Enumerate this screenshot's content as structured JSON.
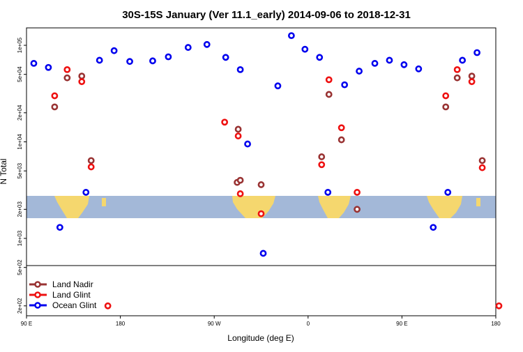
{
  "chart_data": {
    "type": "scatter",
    "title": "30S-15S January (Ver 11.1_early)   2014-09-06 to 2018-12-31",
    "xlabel": "Longitude (deg E)",
    "ylabel": "N Total",
    "x_ticks": [
      {
        "value": 90,
        "label": "90 E"
      },
      {
        "value": 180,
        "label": "180"
      },
      {
        "value": 270,
        "label": "90 W"
      },
      {
        "value": 360,
        "label": "0"
      },
      {
        "value": 450,
        "label": "90 E"
      },
      {
        "value": 540,
        "label": "180"
      }
    ],
    "xlim": [
      90,
      540
    ],
    "y_scale": "log",
    "y_ticks": [
      {
        "value": 200,
        "label": "2e+02"
      },
      {
        "value": 500,
        "label": "5e+02"
      },
      {
        "value": 1000,
        "label": "1e+03"
      },
      {
        "value": 2000,
        "label": "2e+03"
      },
      {
        "value": 5000,
        "label": "5e+03"
      },
      {
        "value": 10000,
        "label": "1e+04"
      },
      {
        "value": 20000,
        "label": "2e+04"
      },
      {
        "value": 50000,
        "label": "5e+04"
      },
      {
        "value": 100000,
        "label": "1e+05"
      }
    ],
    "ylim": [
      150,
      150000
    ],
    "series": [
      {
        "name": "Land Nadir",
        "color": "#993333",
        "points": [
          [
            117,
            23000
          ],
          [
            129,
            46000
          ],
          [
            143,
            48000
          ],
          [
            152,
            6400
          ],
          [
            292,
            3800
          ],
          [
            293,
            13500
          ],
          [
            295,
            4000
          ],
          [
            315,
            3600
          ],
          [
            373,
            7000
          ],
          [
            380,
            31000
          ],
          [
            392,
            10500
          ],
          [
            407,
            2000
          ],
          [
            492,
            23000
          ],
          [
            503,
            46000
          ],
          [
            517,
            48000
          ],
          [
            527,
            6400
          ]
        ]
      },
      {
        "name": "Land Glint",
        "color": "#ee1111",
        "points": [
          [
            117,
            30000
          ],
          [
            129,
            56000
          ],
          [
            143,
            42000
          ],
          [
            152,
            5500
          ],
          [
            168,
            200
          ],
          [
            280,
            16000
          ],
          [
            293,
            11500
          ],
          [
            295,
            2900
          ],
          [
            315,
            1800
          ],
          [
            373,
            5800
          ],
          [
            380,
            44000
          ],
          [
            392,
            14000
          ],
          [
            407,
            3000
          ],
          [
            492,
            30000
          ],
          [
            503,
            56000
          ],
          [
            517,
            42000
          ],
          [
            527,
            5400
          ],
          [
            543,
            200
          ]
        ]
      },
      {
        "name": "Ocean Glint",
        "color": "#0000ee",
        "points": [
          [
            97,
            65000
          ],
          [
            111,
            59000
          ],
          [
            122,
            1300
          ],
          [
            147,
            3000
          ],
          [
            160,
            70000
          ],
          [
            174,
            88000
          ],
          [
            189,
            68000
          ],
          [
            211,
            69000
          ],
          [
            226,
            76000
          ],
          [
            245,
            95000
          ],
          [
            263,
            102000
          ],
          [
            281,
            75000
          ],
          [
            295,
            56000
          ],
          [
            302,
            9500
          ],
          [
            317,
            700
          ],
          [
            331,
            38000
          ],
          [
            344,
            126000
          ],
          [
            357,
            91000
          ],
          [
            371,
            75000
          ],
          [
            379,
            3000
          ],
          [
            395,
            39000
          ],
          [
            409,
            54000
          ],
          [
            424,
            65000
          ],
          [
            438,
            70000
          ],
          [
            452,
            63000
          ],
          [
            466,
            57000
          ],
          [
            480,
            1300
          ],
          [
            494,
            3000
          ],
          [
            508,
            70000
          ],
          [
            522,
            84000
          ]
        ]
      }
    ],
    "legend": {
      "position": "bottom-left",
      "entries": [
        "Land Nadir",
        "Land Glint",
        "Ocean Glint"
      ]
    },
    "map_strip": {
      "ocean_color": "#a3b8d8",
      "land_color": "#f5d76e"
    }
  }
}
